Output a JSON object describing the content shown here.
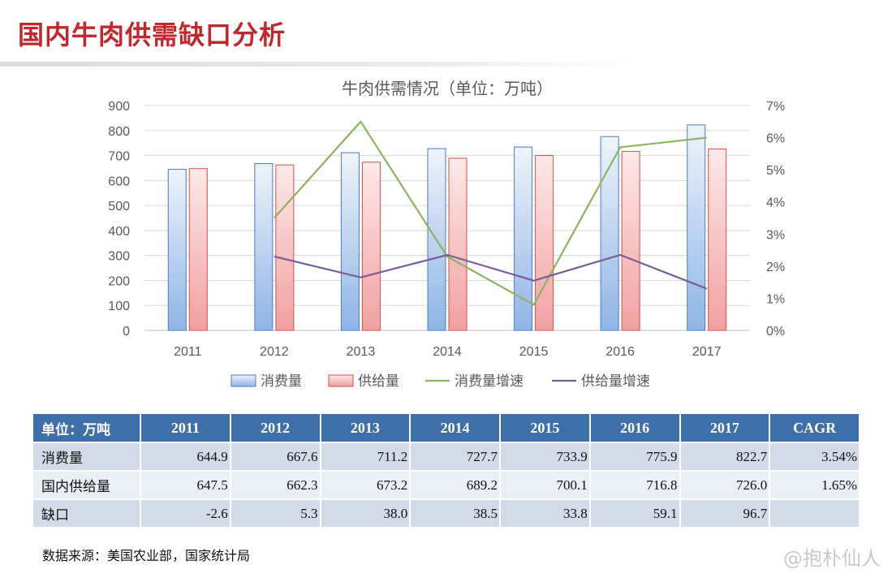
{
  "page": {
    "title": "国内牛肉供需缺口分析",
    "source": "数据来源：美国农业部，国家统计局",
    "watermark": "@抱朴仙人"
  },
  "colors": {
    "title": "#c0282e",
    "consumption_bar": "#8fb4e6",
    "supply_bar": "#f2a0a0",
    "consumption_growth": "#8db35c",
    "supply_growth": "#7a5c9a",
    "table_header": "#3f6fa8"
  },
  "chart_data": {
    "type": "bar",
    "title": "牛肉供需情况（单位：万吨）",
    "categories": [
      "2011",
      "2012",
      "2013",
      "2014",
      "2015",
      "2016",
      "2017"
    ],
    "y_left": {
      "ylim": [
        0,
        900
      ],
      "ticks": [
        "0",
        "100",
        "200",
        "300",
        "400",
        "500",
        "600",
        "700",
        "800",
        "900"
      ]
    },
    "y_right": {
      "ylim": [
        0,
        0.07
      ],
      "ticks": [
        "0%",
        "1%",
        "2%",
        "3%",
        "4%",
        "5%",
        "6%",
        "7%"
      ]
    },
    "series": [
      {
        "name": "消费量",
        "type": "bar",
        "axis": "left",
        "values": [
          644.9,
          667.6,
          711.2,
          727.7,
          733.9,
          775.9,
          822.7
        ]
      },
      {
        "name": "供给量",
        "type": "bar",
        "axis": "left",
        "values": [
          647.5,
          662.3,
          673.2,
          689.2,
          700.1,
          716.8,
          726.0
        ]
      },
      {
        "name": "消费量增速",
        "type": "line",
        "axis": "right",
        "values": [
          null,
          0.035,
          0.065,
          0.023,
          0.008,
          0.057,
          0.06
        ]
      },
      {
        "name": "供给量增速",
        "type": "line",
        "axis": "right",
        "values": [
          null,
          0.023,
          0.0165,
          0.0235,
          0.0155,
          0.0235,
          0.013
        ]
      }
    ],
    "legend_position": "bottom",
    "grid": true
  },
  "table": {
    "corner": "单位：万吨",
    "headers": [
      "2011",
      "2012",
      "2013",
      "2014",
      "2015",
      "2016",
      "2017",
      "CAGR"
    ],
    "rows": [
      {
        "label": "消费量",
        "cells": [
          "644.9",
          "667.6",
          "711.2",
          "727.7",
          "733.9",
          "775.9",
          "822.7",
          "3.54%"
        ]
      },
      {
        "label": "国内供给量",
        "cells": [
          "647.5",
          "662.3",
          "673.2",
          "689.2",
          "700.1",
          "716.8",
          "726.0",
          "1.65%"
        ]
      },
      {
        "label": "缺口",
        "cells": [
          "-2.6",
          "5.3",
          "38.0",
          "38.5",
          "33.8",
          "59.1",
          "96.7",
          ""
        ]
      }
    ]
  }
}
